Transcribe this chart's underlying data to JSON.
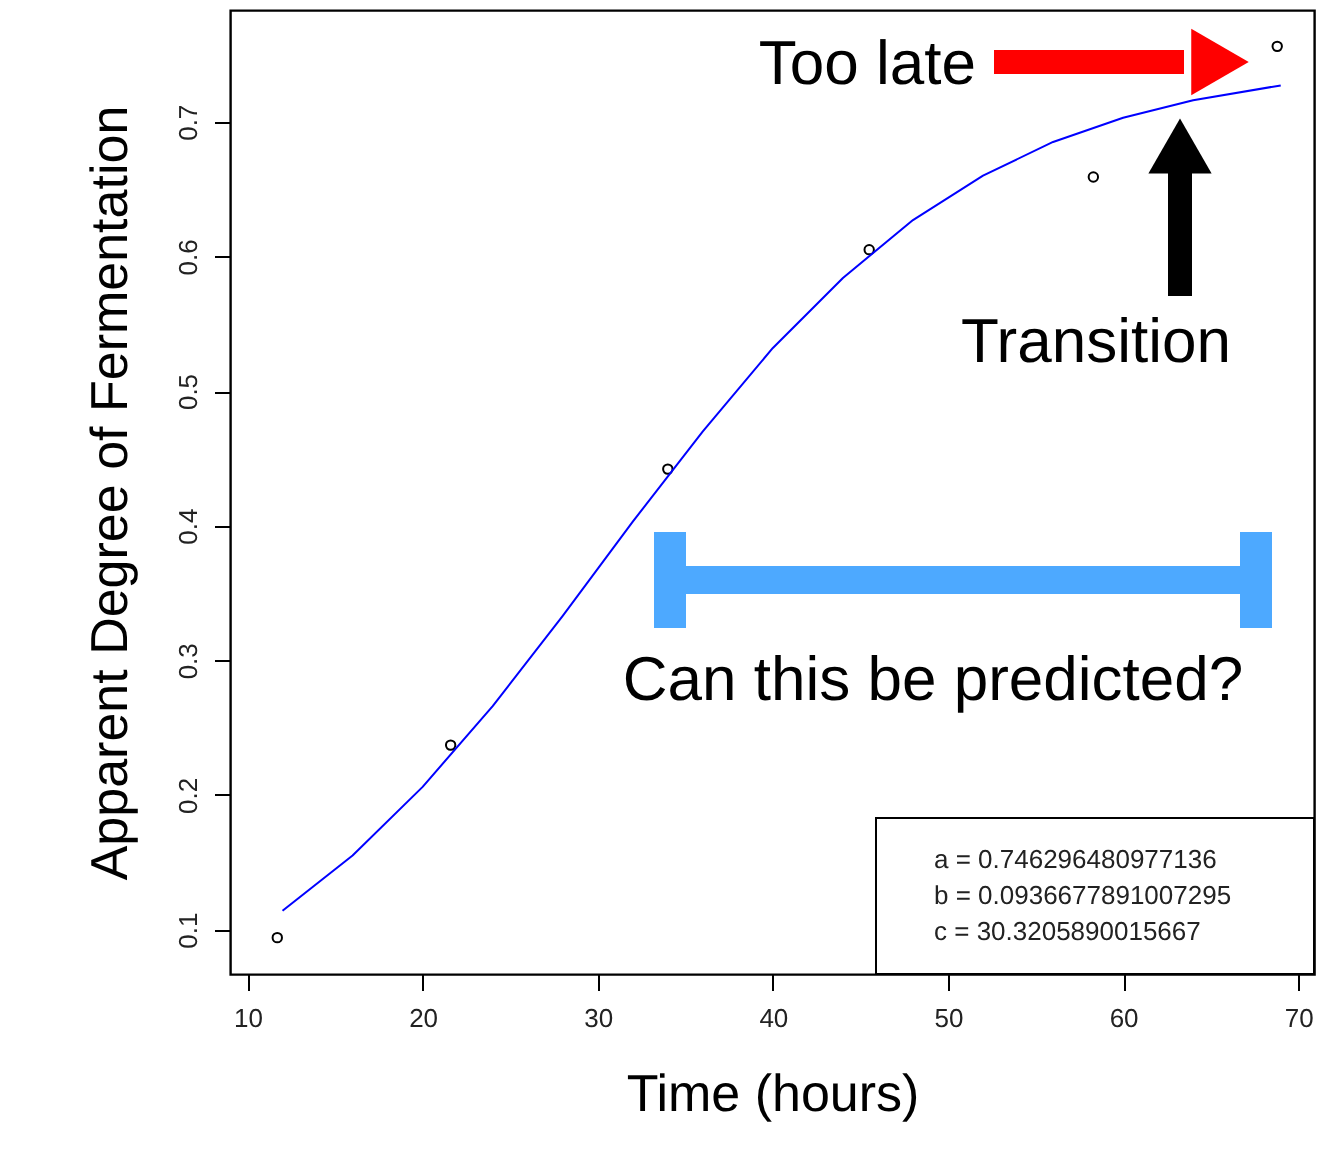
{
  "chart_data": {
    "type": "scatter",
    "xlabel": "Time (hours)",
    "ylabel": "Apparent Degree of Fermentation",
    "xlim": [
      9,
      70.9
    ],
    "ylim": [
      0.067,
      0.783
    ],
    "xticks": [
      10,
      20,
      30,
      40,
      50,
      60,
      70
    ],
    "yticks": [
      0.1,
      0.2,
      0.3,
      0.4,
      0.5,
      0.6,
      0.7
    ],
    "grid": false,
    "marker": "circle",
    "series": [
      {
        "color": "#000000",
        "x": [
          11.7,
          21.6,
          34.0,
          45.5,
          58.3,
          68.8
        ],
        "values": [
          0.094,
          0.237,
          0.442,
          0.605,
          0.659,
          0.756
        ]
      },
      {
        "type": "line",
        "color": "#0000ff",
        "marker": "none",
        "line_style": "solid",
        "x": [
          12,
          16,
          20,
          24,
          28,
          32,
          36,
          40,
          44,
          48,
          52,
          56,
          60,
          64,
          69
        ],
        "values": [
          0.114,
          0.155,
          0.206,
          0.266,
          0.333,
          0.403,
          0.47,
          0.532,
          0.584,
          0.627,
          0.66,
          0.685,
          0.703,
          0.716,
          0.727
        ]
      }
    ],
    "annotations": [
      "Too late",
      "Transition",
      "Can this be predicted?",
      "a = 0.746296480977136",
      "b = 0.0936677891007295",
      "c = 30.3205890015667"
    ]
  }
}
